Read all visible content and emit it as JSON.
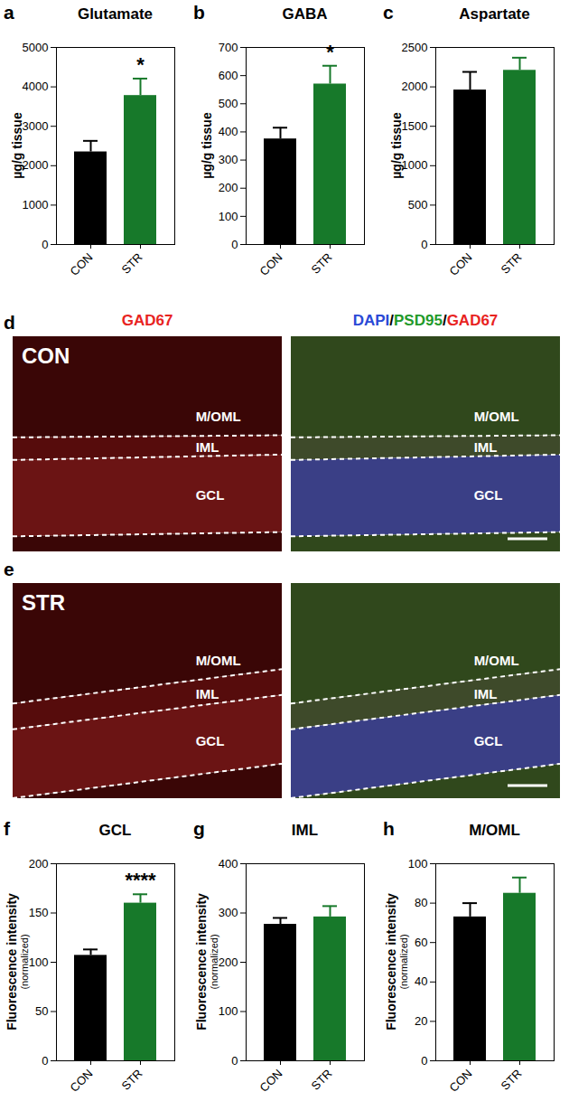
{
  "chart_data": [
    {
      "panel": "a",
      "type": "bar",
      "title": "Glutamate",
      "ylabel": [
        "µg/g tissue"
      ],
      "categories": [
        "CON",
        "STR"
      ],
      "values": [
        2350,
        3780
      ],
      "errors": [
        280,
        430
      ],
      "colors": [
        "#000000",
        "#17792a"
      ],
      "ylim": [
        0,
        5000
      ],
      "yticks": [
        0,
        1000,
        2000,
        3000,
        4000,
        5000
      ],
      "annotations": [
        {
          "category": "STR",
          "text": "*"
        }
      ]
    },
    {
      "panel": "b",
      "type": "bar",
      "title": "GABA",
      "ylabel": [
        "µg/g tissue"
      ],
      "categories": [
        "CON",
        "STR"
      ],
      "values": [
        375,
        570
      ],
      "errors": [
        40,
        65
      ],
      "colors": [
        "#000000",
        "#17792a"
      ],
      "ylim": [
        0,
        700
      ],
      "yticks": [
        0,
        100,
        200,
        300,
        400,
        500,
        600,
        700
      ],
      "annotations": [
        {
          "category": "STR",
          "text": "*"
        }
      ]
    },
    {
      "panel": "c",
      "type": "bar",
      "title": "Aspartate",
      "ylabel": [
        "µg/g tissue"
      ],
      "categories": [
        "CON",
        "STR"
      ],
      "values": [
        1960,
        2210
      ],
      "errors": [
        230,
        160
      ],
      "colors": [
        "#000000",
        "#17792a"
      ],
      "ylim": [
        0,
        2500
      ],
      "yticks": [
        0,
        500,
        1000,
        1500,
        2000,
        2500
      ],
      "annotations": []
    },
    {
      "panel": "f",
      "type": "bar",
      "title": "GCL",
      "ylabel": [
        "Fluorescence intensity",
        "(normalized)"
      ],
      "categories": [
        "CON",
        "STR"
      ],
      "values": [
        107,
        160
      ],
      "errors": [
        6,
        9
      ],
      "colors": [
        "#000000",
        "#17792a"
      ],
      "ylim": [
        0,
        200
      ],
      "yticks": [
        0,
        50,
        100,
        150,
        200
      ],
      "annotations": [
        {
          "category": "STR",
          "text": "****"
        }
      ]
    },
    {
      "panel": "g",
      "type": "bar",
      "title": "IML",
      "ylabel": [
        "Fluorescence intensity",
        "(normalized)"
      ],
      "categories": [
        "CON",
        "STR"
      ],
      "values": [
        277,
        292
      ],
      "errors": [
        13,
        22
      ],
      "colors": [
        "#000000",
        "#17792a"
      ],
      "ylim": [
        0,
        400
      ],
      "yticks": [
        0,
        100,
        200,
        300,
        400
      ],
      "annotations": []
    },
    {
      "panel": "h",
      "type": "bar",
      "title": "M/OML",
      "ylabel": [
        "Fluorescence intensity",
        "(normalized)"
      ],
      "categories": [
        "CON",
        "STR"
      ],
      "values": [
        73,
        85
      ],
      "errors": [
        7,
        8
      ],
      "colors": [
        "#000000",
        "#17792a"
      ],
      "ylim": [
        0,
        100
      ],
      "yticks": [
        0,
        20,
        40,
        60,
        80,
        100
      ],
      "annotations": []
    }
  ],
  "channel_titles": {
    "single": {
      "text": "GAD67",
      "color": "#e8231f"
    },
    "merged": [
      {
        "text": "DAPI",
        "color": "#2a49d6"
      },
      {
        "text": "PSD95",
        "color": "#1f9a2a"
      },
      {
        "text": "GAD67",
        "color": "#e8231f"
      }
    ],
    "separator": "/"
  },
  "image_panels": [
    {
      "panel": "d",
      "group": "CON",
      "layers": [
        "M/OML",
        "IML",
        "GCL"
      ]
    },
    {
      "panel": "e",
      "group": "STR",
      "layers": [
        "M/OML",
        "IML",
        "GCL"
      ]
    }
  ]
}
